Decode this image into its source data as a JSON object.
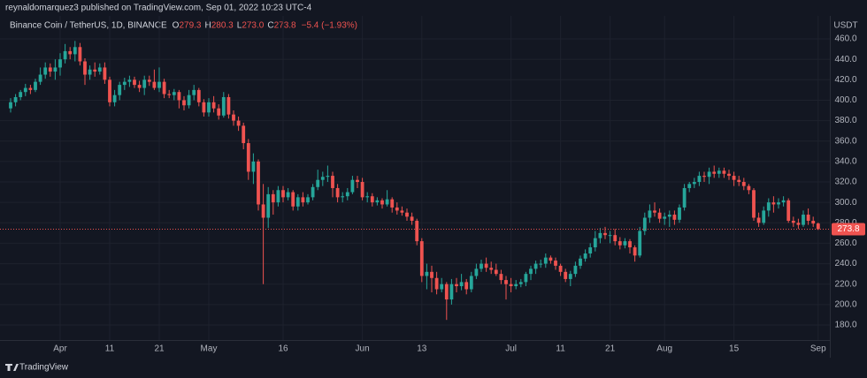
{
  "publisher": "reynaldomarquez3 published on TradingView.com, Sep 01, 2022 10:23 UTC-4",
  "footer": "TradingView",
  "chart_data": {
    "type": "candlestick",
    "symbol": "Binance Coin / TetherUS, 1D, BINANCE",
    "legend_values": [
      {
        "key": "O",
        "value": "279.3"
      },
      {
        "key": "H",
        "value": "280.3"
      },
      {
        "key": "L",
        "value": "273.0"
      },
      {
        "key": "C",
        "value": "273.8"
      }
    ],
    "change": "−5.4 (−1.93%)",
    "y_unit": "USDT",
    "up_color": "#26a69a",
    "down_color": "#ef5350",
    "grid": true,
    "last_price": 273.8,
    "ylim": [
      165.3,
      482.5
    ],
    "yticks": [
      {
        "value": 180,
        "label": "180.0"
      },
      {
        "value": 200,
        "label": "200.0"
      },
      {
        "value": 220,
        "label": "220.0"
      },
      {
        "value": 240,
        "label": "240.0"
      },
      {
        "value": 260,
        "label": "260.0"
      },
      {
        "value": 280,
        "label": "280.0"
      },
      {
        "value": 300,
        "label": "300.0"
      },
      {
        "value": 320,
        "label": "320.0"
      },
      {
        "value": 340,
        "label": "340.0"
      },
      {
        "value": 360,
        "label": "360.0"
      },
      {
        "value": 380,
        "label": "380.0"
      },
      {
        "value": 400,
        "label": "400.0"
      },
      {
        "value": 420,
        "label": "420.0"
      },
      {
        "value": 440,
        "label": "440.0"
      },
      {
        "value": 460,
        "label": "460.0"
      }
    ],
    "categories": [
      null,
      null,
      null,
      null,
      null,
      null,
      null,
      null,
      null,
      null,
      "Apr",
      null,
      null,
      null,
      null,
      null,
      null,
      null,
      null,
      null,
      "11",
      null,
      null,
      null,
      null,
      null,
      null,
      null,
      null,
      null,
      "21",
      null,
      null,
      null,
      null,
      null,
      null,
      null,
      null,
      null,
      "May",
      null,
      null,
      null,
      null,
      null,
      null,
      null,
      null,
      null,
      null,
      null,
      null,
      null,
      null,
      "16",
      null,
      null,
      null,
      null,
      null,
      null,
      null,
      null,
      null,
      null,
      null,
      null,
      null,
      null,
      null,
      "Jun",
      null,
      null,
      null,
      null,
      null,
      null,
      null,
      null,
      null,
      null,
      null,
      "13",
      null,
      null,
      null,
      null,
      null,
      null,
      null,
      null,
      null,
      null,
      null,
      null,
      null,
      null,
      null,
      null,
      null,
      "Jul",
      null,
      null,
      null,
      null,
      null,
      null,
      null,
      null,
      null,
      "11",
      null,
      null,
      null,
      null,
      null,
      null,
      null,
      null,
      null,
      "21",
      null,
      null,
      null,
      null,
      null,
      null,
      null,
      null,
      null,
      null,
      "Aug",
      null,
      null,
      null,
      null,
      null,
      null,
      null,
      null,
      null,
      null,
      null,
      null,
      null,
      "15",
      null,
      null,
      null,
      null,
      null,
      null,
      null,
      null,
      null,
      null,
      null,
      null,
      null,
      null,
      null,
      null,
      "Sep"
    ],
    "ohlc": [
      [
        392,
        402,
        388,
        398
      ],
      [
        398,
        406,
        394,
        403
      ],
      [
        403,
        410,
        400,
        408
      ],
      [
        408,
        416,
        404,
        412
      ],
      [
        412,
        415,
        406,
        410
      ],
      [
        410,
        421,
        408,
        418
      ],
      [
        418,
        432,
        415,
        425
      ],
      [
        425,
        437,
        421,
        432
      ],
      [
        432,
        436,
        423,
        428
      ],
      [
        428,
        440,
        420,
        432
      ],
      [
        432,
        446,
        424,
        440
      ],
      [
        440,
        455,
        436,
        448
      ],
      [
        448,
        452,
        440,
        445
      ],
      [
        445,
        458,
        438,
        452
      ],
      [
        452,
        456,
        434,
        438
      ],
      [
        438,
        441,
        415,
        425
      ],
      [
        425,
        434,
        420,
        430
      ],
      [
        430,
        437,
        423,
        428
      ],
      [
        428,
        436,
        425,
        432
      ],
      [
        432,
        437,
        416,
        420
      ],
      [
        420,
        423,
        394,
        398
      ],
      [
        398,
        410,
        394,
        405
      ],
      [
        405,
        418,
        400,
        415
      ],
      [
        415,
        422,
        410,
        418
      ],
      [
        418,
        424,
        413,
        420
      ],
      [
        420,
        423,
        412,
        415
      ],
      [
        415,
        419,
        408,
        412
      ],
      [
        412,
        424,
        405,
        420
      ],
      [
        420,
        424,
        414,
        418
      ],
      [
        418,
        430,
        410,
        412
      ],
      [
        412,
        432,
        408,
        418
      ],
      [
        418,
        421,
        402,
        406
      ],
      [
        406,
        410,
        402,
        405
      ],
      [
        405,
        411,
        400,
        408
      ],
      [
        408,
        410,
        392,
        400
      ],
      [
        400,
        404,
        390,
        395
      ],
      [
        395,
        410,
        392,
        405
      ],
      [
        405,
        415,
        400,
        410
      ],
      [
        410,
        412,
        394,
        398
      ],
      [
        398,
        401,
        384,
        388
      ],
      [
        388,
        402,
        384,
        398
      ],
      [
        398,
        404,
        388,
        392
      ],
      [
        392,
        396,
        381,
        385
      ],
      [
        385,
        408,
        383,
        403
      ],
      [
        403,
        406,
        382,
        386
      ],
      [
        386,
        390,
        375,
        380
      ],
      [
        380,
        384,
        370,
        375
      ],
      [
        375,
        378,
        352,
        358
      ],
      [
        358,
        362,
        322,
        330
      ],
      [
        330,
        348,
        318,
        340
      ],
      [
        340,
        342,
        292,
        298
      ],
      [
        298,
        318,
        220,
        285
      ],
      [
        285,
        315,
        275,
        308
      ],
      [
        308,
        312,
        288,
        300
      ],
      [
        300,
        316,
        296,
        312
      ],
      [
        312,
        316,
        300,
        305
      ],
      [
        305,
        314,
        302,
        310
      ],
      [
        310,
        312,
        292,
        296
      ],
      [
        296,
        308,
        292,
        305
      ],
      [
        305,
        310,
        296,
        300
      ],
      [
        300,
        308,
        298,
        305
      ],
      [
        305,
        318,
        302,
        315
      ],
      [
        315,
        332,
        312,
        322
      ],
      [
        322,
        330,
        316,
        325
      ],
      [
        325,
        336,
        320,
        326
      ],
      [
        326,
        330,
        305,
        314
      ],
      [
        314,
        318,
        300,
        305
      ],
      [
        305,
        310,
        300,
        306
      ],
      [
        306,
        314,
        302,
        310
      ],
      [
        310,
        326,
        308,
        322
      ],
      [
        322,
        326,
        314,
        320
      ],
      [
        320,
        324,
        302,
        305
      ],
      [
        305,
        310,
        300,
        306
      ],
      [
        306,
        309,
        296,
        300
      ],
      [
        300,
        305,
        297,
        302
      ],
      [
        302,
        304,
        294,
        298
      ],
      [
        298,
        312,
        296,
        303
      ],
      [
        303,
        305,
        290,
        295
      ],
      [
        295,
        300,
        288,
        292
      ],
      [
        292,
        296,
        287,
        290
      ],
      [
        290,
        294,
        282,
        286
      ],
      [
        286,
        290,
        278,
        282
      ],
      [
        282,
        284,
        258,
        262
      ],
      [
        262,
        265,
        222,
        228
      ],
      [
        228,
        240,
        215,
        232
      ],
      [
        232,
        238,
        212,
        226
      ],
      [
        226,
        232,
        210,
        215
      ],
      [
        215,
        226,
        212,
        220
      ],
      [
        220,
        222,
        185,
        205
      ],
      [
        205,
        225,
        200,
        220
      ],
      [
        220,
        226,
        212,
        218
      ],
      [
        218,
        230,
        214,
        222
      ],
      [
        222,
        225,
        210,
        215
      ],
      [
        215,
        232,
        212,
        228
      ],
      [
        228,
        240,
        225,
        235
      ],
      [
        235,
        244,
        232,
        240
      ],
      [
        240,
        246,
        232,
        236
      ],
      [
        236,
        242,
        230,
        234
      ],
      [
        234,
        240,
        228,
        230
      ],
      [
        230,
        234,
        220,
        224
      ],
      [
        224,
        228,
        205,
        220
      ],
      [
        220,
        226,
        212,
        218
      ],
      [
        218,
        224,
        215,
        220
      ],
      [
        220,
        225,
        217,
        222
      ],
      [
        222,
        232,
        218,
        230
      ],
      [
        230,
        238,
        224,
        235
      ],
      [
        235,
        243,
        230,
        240
      ],
      [
        240,
        244,
        236,
        240
      ],
      [
        240,
        250,
        236,
        246
      ],
      [
        246,
        248,
        240,
        243
      ],
      [
        243,
        246,
        234,
        238
      ],
      [
        238,
        240,
        228,
        232
      ],
      [
        232,
        235,
        222,
        225
      ],
      [
        225,
        233,
        218,
        230
      ],
      [
        230,
        242,
        227,
        238
      ],
      [
        238,
        248,
        235,
        245
      ],
      [
        245,
        254,
        242,
        250
      ],
      [
        250,
        260,
        246,
        256
      ],
      [
        256,
        272,
        252,
        265
      ],
      [
        265,
        275,
        260,
        270
      ],
      [
        270,
        276,
        264,
        268
      ],
      [
        268,
        272,
        260,
        268
      ],
      [
        268,
        274,
        258,
        262
      ],
      [
        262,
        266,
        254,
        258
      ],
      [
        258,
        265,
        255,
        262
      ],
      [
        262,
        264,
        250,
        256
      ],
      [
        256,
        258,
        242,
        248
      ],
      [
        248,
        276,
        246,
        272
      ],
      [
        272,
        290,
        268,
        285
      ],
      [
        285,
        298,
        280,
        292
      ],
      [
        292,
        300,
        286,
        290
      ],
      [
        290,
        294,
        280,
        284
      ],
      [
        284,
        290,
        278,
        286
      ],
      [
        286,
        292,
        276,
        288
      ],
      [
        288,
        292,
        278,
        283
      ],
      [
        283,
        298,
        280,
        295
      ],
      [
        295,
        318,
        292,
        314
      ],
      [
        314,
        320,
        310,
        318
      ],
      [
        318,
        324,
        314,
        320
      ],
      [
        320,
        330,
        316,
        326
      ],
      [
        326,
        330,
        320,
        325
      ],
      [
        325,
        334,
        318,
        330
      ],
      [
        330,
        336,
        324,
        328
      ],
      [
        328,
        334,
        324,
        331
      ],
      [
        331,
        334,
        324,
        328
      ],
      [
        328,
        332,
        322,
        326
      ],
      [
        326,
        330,
        316,
        322
      ],
      [
        322,
        326,
        316,
        320
      ],
      [
        320,
        324,
        312,
        316
      ],
      [
        316,
        318,
        308,
        312
      ],
      [
        312,
        314,
        282,
        285
      ],
      [
        285,
        290,
        276,
        280
      ],
      [
        280,
        296,
        278,
        292
      ],
      [
        292,
        304,
        286,
        300
      ],
      [
        300,
        306,
        290,
        298
      ],
      [
        298,
        304,
        294,
        300
      ],
      [
        300,
        306,
        296,
        302
      ],
      [
        302,
        304,
        280,
        282
      ],
      [
        282,
        286,
        276,
        280
      ],
      [
        280,
        284,
        274,
        278
      ],
      [
        278,
        292,
        276,
        288
      ],
      [
        288,
        294,
        278,
        282
      ],
      [
        282,
        286,
        276,
        279.3
      ],
      [
        279.3,
        280.3,
        273.0,
        273.8
      ]
    ]
  }
}
